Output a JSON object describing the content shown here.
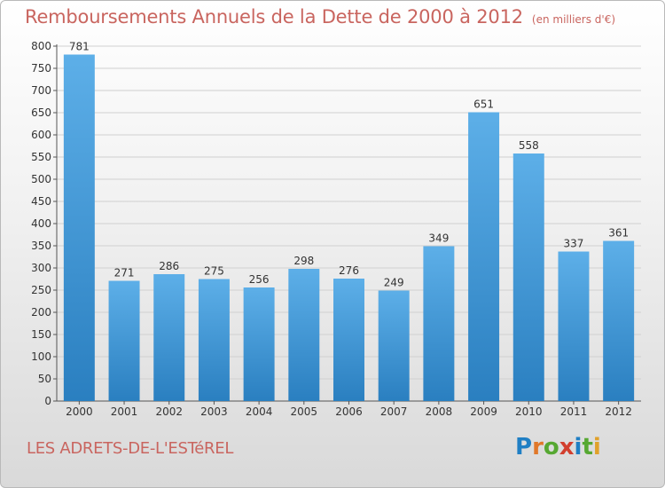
{
  "header": {
    "title": "Remboursements Annuels de la Dette de 2000 à 2012",
    "unit": "(en milliers d'€)"
  },
  "footer": {
    "commune": "LES ADRETS-DE-L'ESTéREL",
    "logo": "Proxiti"
  },
  "colors": {
    "bar_top": "#5dafe8",
    "bar_bottom": "#2a7fc0",
    "grid": "#d0d0d0",
    "title": "#c9655f"
  },
  "chart_data": {
    "type": "bar",
    "title": "Remboursements Annuels de la Dette de 2000 à 2012",
    "xlabel": "",
    "ylabel": "",
    "categories": [
      "2000",
      "2001",
      "2002",
      "2003",
      "2004",
      "2005",
      "2006",
      "2007",
      "2008",
      "2009",
      "2010",
      "2011",
      "2012"
    ],
    "values": [
      781,
      271,
      286,
      275,
      256,
      298,
      276,
      249,
      349,
      651,
      558,
      337,
      361
    ],
    "ylim": [
      0,
      800
    ],
    "yticks": [
      0,
      50,
      100,
      150,
      200,
      250,
      300,
      350,
      400,
      450,
      500,
      550,
      600,
      650,
      700,
      750,
      800
    ],
    "grid": true,
    "legend": "none"
  }
}
